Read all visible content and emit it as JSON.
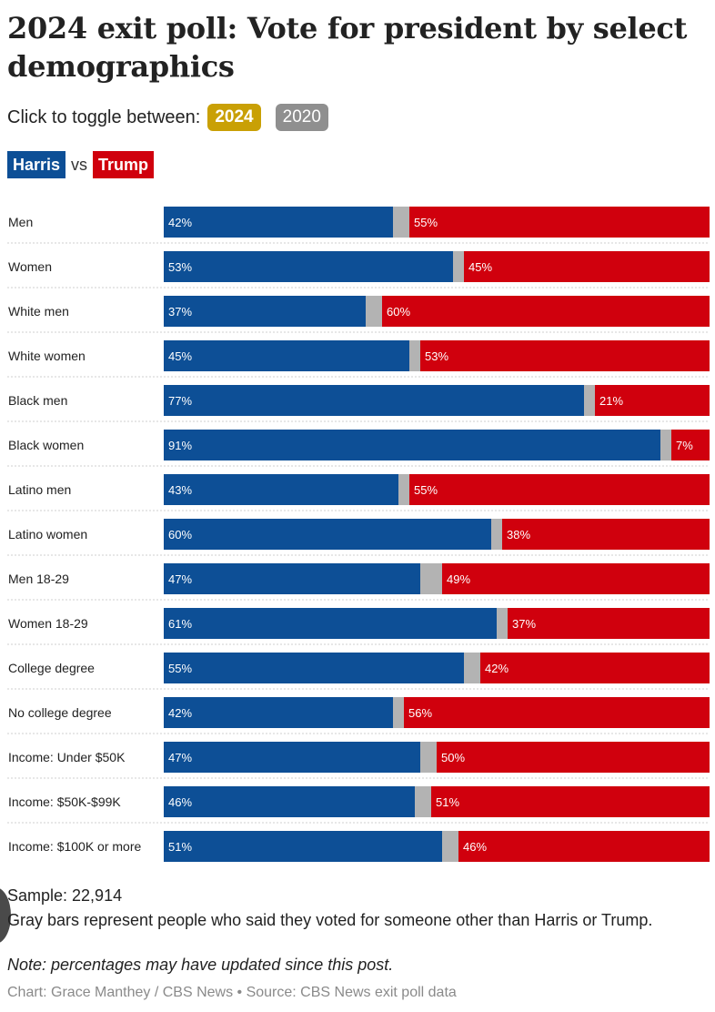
{
  "title": "2024 exit poll: Vote for president by select demographics",
  "toggle": {
    "prompt": "Click to toggle between:",
    "options": [
      "2024",
      "2020"
    ],
    "selected": "2024"
  },
  "legend": {
    "harris": "Harris",
    "vs": "vs",
    "trump": "Trump"
  },
  "colors": {
    "harris": "#0d4f96",
    "trump": "#d0000d",
    "other": "#b3b3b3",
    "toggle_active": "#c9a005",
    "toggle_inactive": "#8f8f8f"
  },
  "chart_data": {
    "type": "bar",
    "stacked": true,
    "orientation": "horizontal",
    "categories": [
      "Men",
      "Women",
      "White men",
      "White women",
      "Black men",
      "Black women",
      "Latino men",
      "Latino women",
      "Men 18-29",
      "Women 18-29",
      "College degree",
      "No college degree",
      "Income: Under $50K",
      "Income: $50K-$99K",
      "Income: $100K or more"
    ],
    "series": [
      {
        "name": "Harris",
        "values": [
          42,
          53,
          37,
          45,
          77,
          91,
          43,
          60,
          47,
          61,
          55,
          42,
          47,
          46,
          51
        ]
      },
      {
        "values": [
          3,
          2,
          3,
          2,
          2,
          2,
          2,
          2,
          4,
          2,
          3,
          2,
          3,
          3,
          3
        ]
      },
      {
        "name": "Trump",
        "values": [
          55,
          45,
          60,
          53,
          21,
          7,
          55,
          38,
          49,
          37,
          42,
          56,
          50,
          51,
          46
        ]
      }
    ],
    "value_suffix": "%",
    "xlim": [
      0,
      100
    ]
  },
  "footer": {
    "sample": "Sample: 22,914",
    "gray_note": "Gray bars represent people who said they voted for someone other than Harris or Trump.",
    "note": "Note: percentages may have updated since this post.",
    "credit": "Chart: Grace Manthey / CBS News • Source: CBS News exit poll data"
  }
}
